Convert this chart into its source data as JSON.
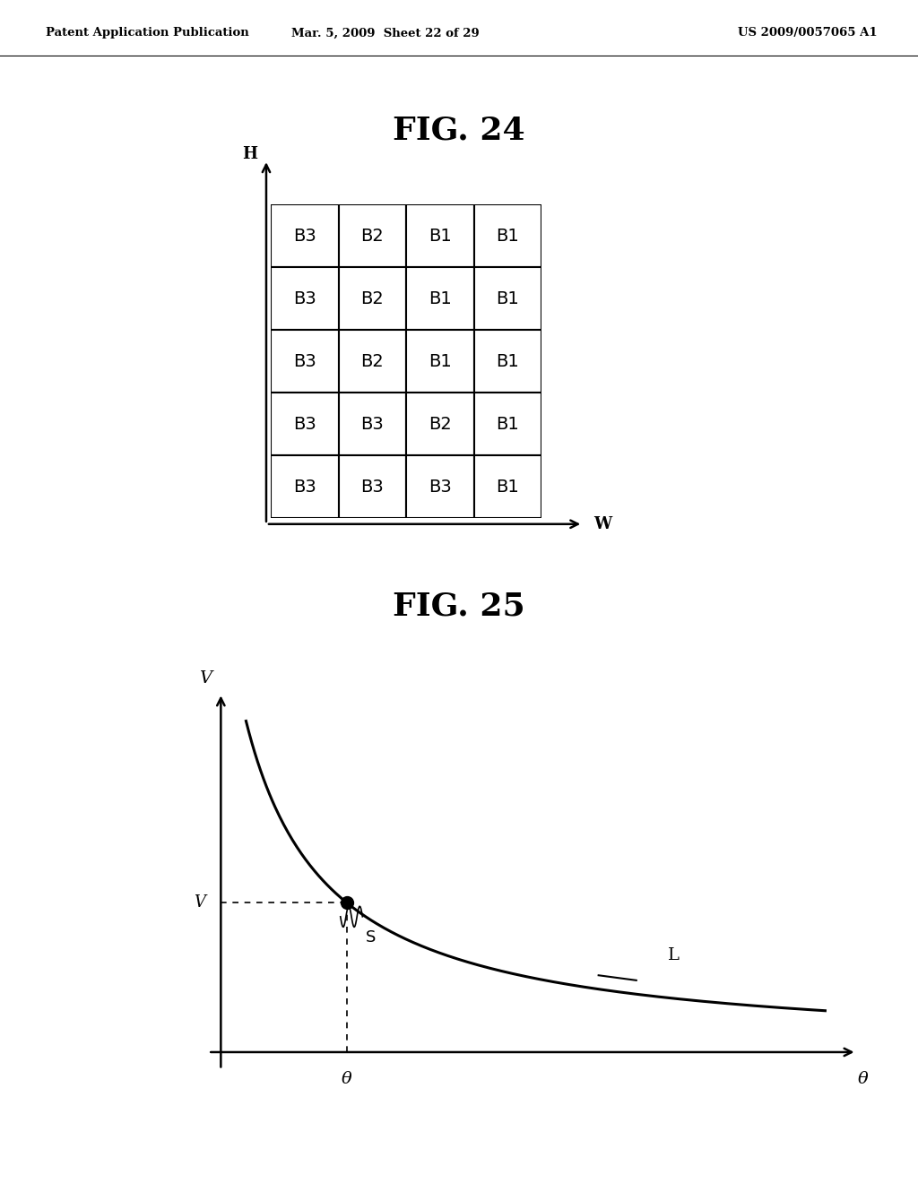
{
  "header_left": "Patent Application Publication",
  "header_mid": "Mar. 5, 2009  Sheet 22 of 29",
  "header_right": "US 2009/0057065 A1",
  "fig24_title": "FIG. 24",
  "fig25_title": "FIG. 25",
  "grid_rows": 5,
  "grid_cols": 4,
  "grid_labels": [
    [
      "B3",
      "B2",
      "B1",
      "B1"
    ],
    [
      "B3",
      "B2",
      "B1",
      "B1"
    ],
    [
      "B3",
      "B2",
      "B1",
      "B1"
    ],
    [
      "B3",
      "B3",
      "B2",
      "B1"
    ],
    [
      "B3",
      "B3",
      "B3",
      "B1"
    ]
  ],
  "grid_x_label": "W",
  "grid_y_label": "H",
  "curve_x_label": "θ",
  "curve_y_label": "V",
  "curve_point_label": "S",
  "curve_line_label": "L",
  "curve_v_label": "V",
  "curve_theta_label": "θ",
  "background_color": "#ffffff",
  "line_color": "#000000",
  "text_color": "#000000"
}
